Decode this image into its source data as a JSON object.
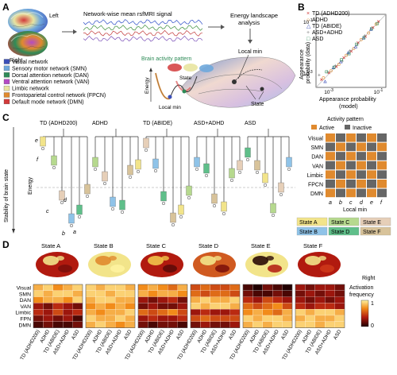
{
  "panel_labels": [
    "A",
    "B",
    "C",
    "D"
  ],
  "panel_a": {
    "brain_left": "Left",
    "brain_right": "Right",
    "signal_title": "Network-wise mean rsfMRI signal",
    "analysis_title": "Energy landscape\nanalysis",
    "networks": [
      {
        "label": "Visual network",
        "color": "#3b4fb8"
      },
      {
        "label": "Sensory motor network (SMN)",
        "color": "#6fa8dc"
      },
      {
        "label": "Dorsal attention network (DAN)",
        "color": "#2e8b57"
      },
      {
        "label": "Ventral attention network (VAN)",
        "color": "#b44bc4"
      },
      {
        "label": "Limbic network",
        "color": "#e8e4a0"
      },
      {
        "label": "Frontoparietal control network (FPCN)",
        "color": "#e08a2e"
      },
      {
        "label": "Default mode network (DMN)",
        "color": "#d23a3a"
      }
    ],
    "brain_activity_label": "Brain activity pattern",
    "energy_label": "Energy",
    "state_label": "State",
    "local_min_label": "Local min",
    "local_min_top": "Local min",
    "state_bottom": "State",
    "signal_colors": [
      "#2e4fc7",
      "#3c8f3c",
      "#c23a3a",
      "#7a4fb8"
    ]
  },
  "panel_b": {
    "legend": [
      {
        "label": "TD (ADHD200)",
        "color": "#d23a3a",
        "marker": "x"
      },
      {
        "label": "ADHD",
        "color": "#e08a2e",
        "marker": "o"
      },
      {
        "label": "TD (ABIDE)",
        "color": "#3b4fb8",
        "marker": "^"
      },
      {
        "label": "ASD+ADHD",
        "color": "#8a8a8a",
        "marker": "+"
      },
      {
        "label": "ASD",
        "color": "#2e8b57",
        "marker": "s"
      }
    ],
    "xlabel": "Appearance probability\n(model)",
    "ylabel": "Appearance\nprobability (data)",
    "xtick_left": "10",
    "xtick_left_exp": "-3",
    "xtick_right": "10",
    "xtick_right_exp": "-1",
    "ytick_top": "10",
    "ytick_top_exp": "-1",
    "ytick_bottom": "10",
    "ytick_bottom_exp": "-3"
  },
  "chart_data": {
    "type": "scatter",
    "log_x": true,
    "log_y": true,
    "xlabel": "Appearance probability (model)",
    "ylabel": "Appearance probability (data)",
    "xlim": [
      0.0003,
      0.2
    ],
    "ylim": [
      0.0003,
      0.2
    ],
    "series": [
      {
        "name": "TD (ADHD200)",
        "x": [
          0.0005,
          0.001,
          0.002,
          0.004,
          0.008,
          0.015,
          0.03,
          0.06,
          0.1
        ],
        "y": [
          0.0006,
          0.0011,
          0.0019,
          0.0042,
          0.0075,
          0.016,
          0.028,
          0.062,
          0.105
        ]
      },
      {
        "name": "ADHD",
        "x": [
          0.0006,
          0.0012,
          0.0025,
          0.005,
          0.01,
          0.02,
          0.04,
          0.08
        ],
        "y": [
          0.0007,
          0.0013,
          0.0023,
          0.0052,
          0.0095,
          0.021,
          0.038,
          0.083
        ]
      },
      {
        "name": "TD (ABIDE)",
        "x": [
          0.0007,
          0.0015,
          0.003,
          0.006,
          0.012,
          0.025,
          0.05
        ],
        "y": [
          0.0005,
          0.0017,
          0.0029,
          0.0065,
          0.011,
          0.024,
          0.052
        ]
      },
      {
        "name": "ASD+ADHD",
        "x": [
          0.0004,
          0.0009,
          0.0018,
          0.0035,
          0.007,
          0.014,
          0.028
        ],
        "y": [
          0.0009,
          0.0012,
          0.0021,
          0.0031,
          0.0078,
          0.013,
          0.03
        ]
      },
      {
        "name": "ASD",
        "x": [
          0.0008,
          0.0016,
          0.0032,
          0.0065,
          0.013,
          0.026,
          0.052,
          0.09
        ],
        "y": [
          0.0012,
          0.0018,
          0.0035,
          0.006,
          0.014,
          0.025,
          0.055,
          0.088
        ]
      }
    ]
  },
  "panel_c": {
    "ylabel": "Stability of brain state",
    "energy_label": "Energy",
    "groups": [
      "TD (ADHD200)",
      "ADHD",
      "TD (ABIDE)",
      "ASD+ADHD",
      "ASD"
    ],
    "local_min_letters": [
      "a",
      "b",
      "c",
      "d",
      "e",
      "f"
    ],
    "activity_title": "Activity pattern",
    "active_label": "Active",
    "inactive_label": "Inactive",
    "active_color": "#e08a2e",
    "inactive_color": "#666666",
    "rows": [
      "Visual",
      "SMN",
      "DAN",
      "VAN",
      "Limbic",
      "FPCN",
      "DMN"
    ],
    "cols": [
      "a",
      "b",
      "c",
      "d",
      "e",
      "f"
    ],
    "local_min_axis": "Local min",
    "pattern": [
      [
        1,
        0,
        1,
        0,
        1,
        0
      ],
      [
        0,
        1,
        0,
        1,
        0,
        1
      ],
      [
        1,
        0,
        1,
        0,
        1,
        0
      ],
      [
        0,
        1,
        0,
        1,
        0,
        1
      ],
      [
        1,
        0,
        1,
        0,
        1,
        0
      ],
      [
        0,
        1,
        0,
        1,
        0,
        1
      ],
      [
        1,
        0,
        1,
        0,
        1,
        0
      ]
    ],
    "states": [
      {
        "label": "State A",
        "color": "#f2e48a"
      },
      {
        "label": "State C",
        "color": "#b6d98e"
      },
      {
        "label": "State E",
        "color": "#e6cfb8"
      },
      {
        "label": "State B",
        "color": "#8fc3e8"
      },
      {
        "label": "State D",
        "color": "#5fbf8a"
      },
      {
        "label": "State F",
        "color": "#d8c39a"
      }
    ]
  },
  "panel_d": {
    "states": [
      "State A",
      "State B",
      "State C",
      "State D",
      "State E",
      "State F"
    ],
    "right_label": "Right",
    "rows": [
      "Visual",
      "SMN",
      "DAN",
      "VAN",
      "Limbic",
      "FPN",
      "DMN"
    ],
    "groups": [
      "TD (ADHD200)",
      "ADHD",
      "TD (ABIDE)",
      "ASD+ADHD",
      "ASD"
    ],
    "colorbar_title": "Activation\nfrequency",
    "colorbar_max": "1",
    "colorbar_min": "0",
    "heatmaps": [
      [
        [
          0.8,
          0.9,
          0.7,
          0.8,
          0.9
        ],
        [
          0.9,
          0.8,
          0.9,
          0.9,
          0.8
        ],
        [
          0.7,
          0.8,
          0.8,
          0.7,
          0.9
        ],
        [
          0.3,
          0.2,
          0.4,
          0.3,
          0.2
        ],
        [
          0.4,
          0.3,
          0.5,
          0.3,
          0.4
        ],
        [
          0.2,
          0.3,
          0.2,
          0.3,
          0.1
        ],
        [
          0.1,
          0.2,
          0.1,
          0.1,
          0.2
        ]
      ],
      [
        [
          0.9,
          0.8,
          0.9,
          0.9,
          0.8
        ],
        [
          0.9,
          0.9,
          0.8,
          0.9,
          0.9
        ],
        [
          0.8,
          0.9,
          0.9,
          0.8,
          0.8
        ],
        [
          0.7,
          0.8,
          0.7,
          0.8,
          0.7
        ],
        [
          0.8,
          0.7,
          0.8,
          0.8,
          0.9
        ],
        [
          0.9,
          0.8,
          0.8,
          0.9,
          0.8
        ],
        [
          0.8,
          0.9,
          0.8,
          0.7,
          0.8
        ]
      ],
      [
        [
          0.7,
          0.8,
          0.7,
          0.6,
          0.8
        ],
        [
          0.8,
          0.7,
          0.8,
          0.8,
          0.7
        ],
        [
          0.3,
          0.2,
          0.3,
          0.4,
          0.2
        ],
        [
          0.2,
          0.3,
          0.2,
          0.2,
          0.3
        ],
        [
          0.6,
          0.5,
          0.6,
          0.7,
          0.5
        ],
        [
          0.3,
          0.4,
          0.3,
          0.3,
          0.4
        ],
        [
          0.2,
          0.1,
          0.2,
          0.2,
          0.1
        ]
      ],
      [
        [
          0.5,
          0.6,
          0.5,
          0.5,
          0.6
        ],
        [
          0.6,
          0.5,
          0.6,
          0.6,
          0.5
        ],
        [
          0.8,
          0.9,
          0.8,
          0.8,
          0.9
        ],
        [
          0.9,
          0.8,
          0.9,
          0.9,
          0.8
        ],
        [
          0.3,
          0.4,
          0.3,
          0.3,
          0.4
        ],
        [
          0.5,
          0.6,
          0.5,
          0.5,
          0.5
        ],
        [
          0.2,
          0.3,
          0.2,
          0.2,
          0.3
        ]
      ],
      [
        [
          0.1,
          0.0,
          0.2,
          0.1,
          0.0
        ],
        [
          0.2,
          0.1,
          0.1,
          0.2,
          0.1
        ],
        [
          0.4,
          0.3,
          0.5,
          0.4,
          0.3
        ],
        [
          0.6,
          0.5,
          0.6,
          0.7,
          0.5
        ],
        [
          0.7,
          0.8,
          0.7,
          0.6,
          0.8
        ],
        [
          0.9,
          0.8,
          0.9,
          0.9,
          0.8
        ],
        [
          0.8,
          0.9,
          0.8,
          0.9,
          0.9
        ]
      ],
      [
        [
          0.3,
          0.2,
          0.3,
          0.3,
          0.2
        ],
        [
          0.2,
          0.3,
          0.2,
          0.3,
          0.2
        ],
        [
          0.3,
          0.2,
          0.3,
          0.2,
          0.3
        ],
        [
          0.4,
          0.3,
          0.4,
          0.4,
          0.3
        ],
        [
          0.9,
          0.8,
          0.9,
          0.9,
          0.8
        ],
        [
          0.8,
          0.9,
          0.8,
          0.8,
          0.9
        ],
        [
          0.9,
          0.9,
          0.8,
          0.9,
          0.9
        ]
      ]
    ]
  }
}
